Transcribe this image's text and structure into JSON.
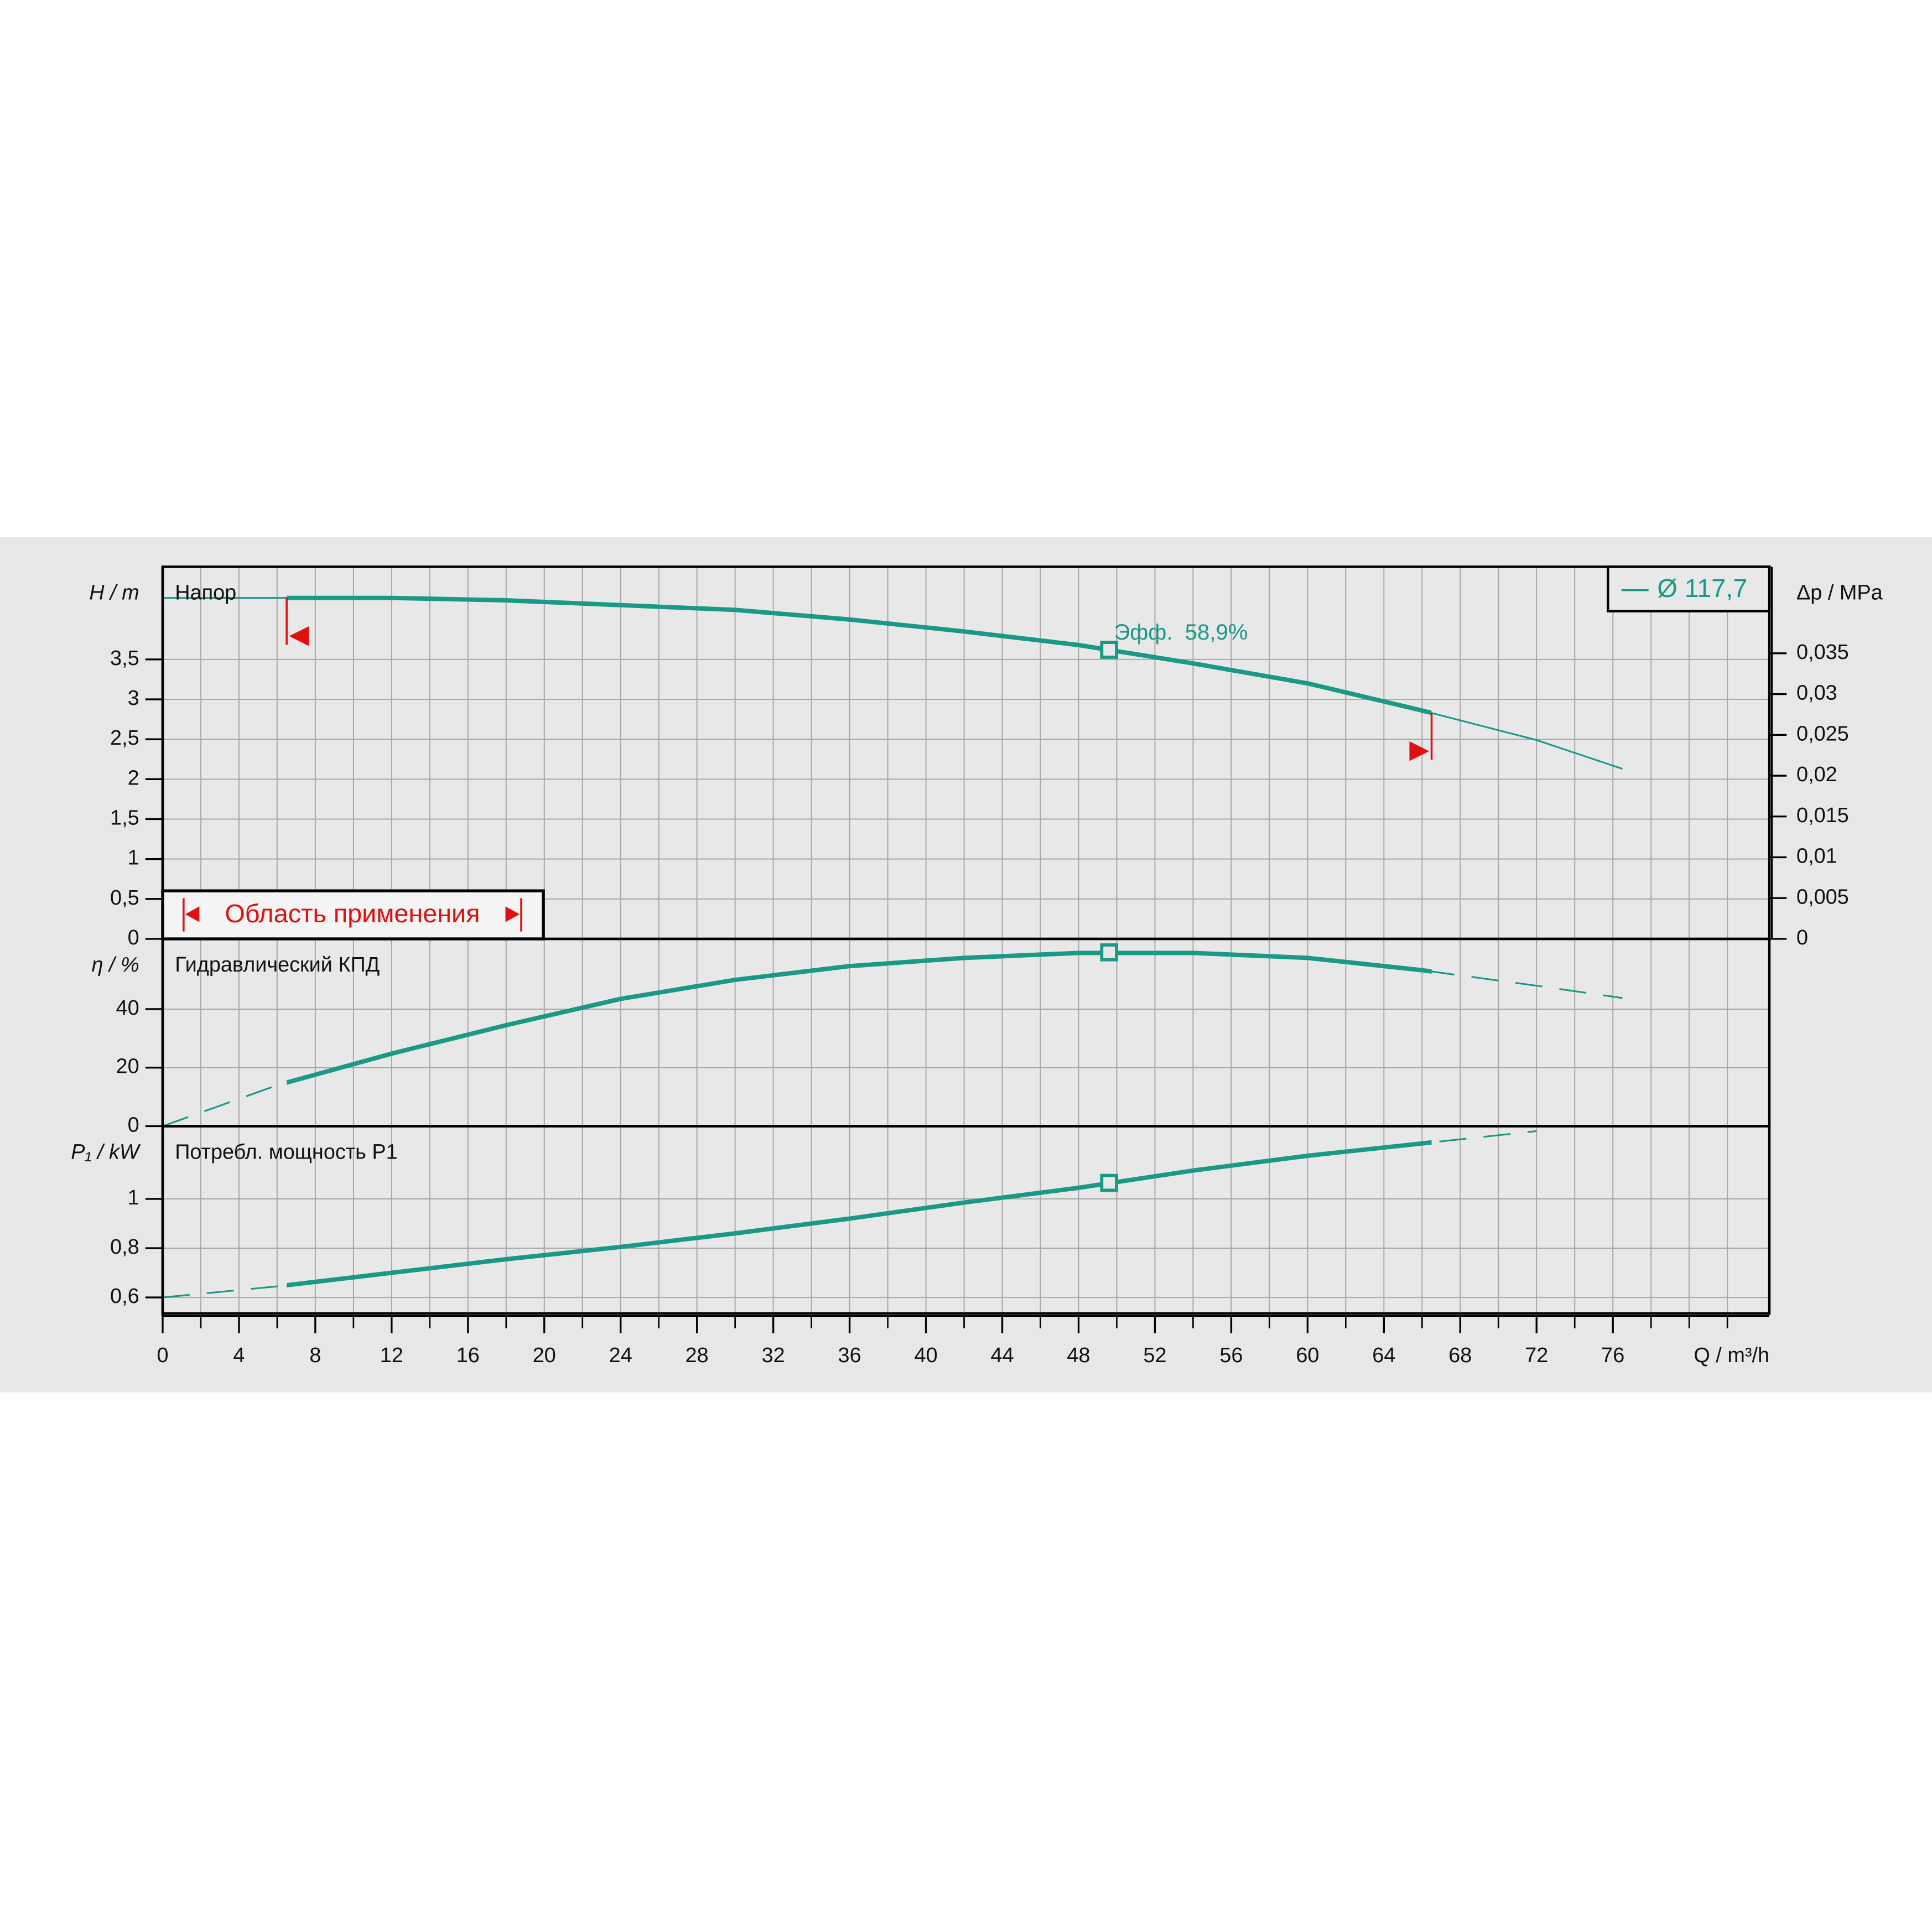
{
  "chart_data": [
    {
      "type": "line",
      "title": "Напор",
      "ylabel": "H / m",
      "y2label": "Δp / MPa",
      "xlim": [
        0,
        84.2
      ],
      "ylim": [
        0,
        4.66
      ],
      "yticks": [
        0,
        {
          "value": 0.5,
          "label": "0,5"
        },
        1,
        {
          "value": 1.5,
          "label": "1,5"
        },
        2,
        {
          "value": 2.5,
          "label": "2,5"
        },
        3,
        {
          "value": 3.5,
          "label": "3,5"
        }
      ],
      "y2lim": [
        0,
        0.0456
      ],
      "y2ticks": [
        0,
        {
          "value": 0.005,
          "label": "0,005"
        },
        {
          "value": 0.01,
          "label": "0,01"
        },
        {
          "value": 0.015,
          "label": "0,015"
        },
        {
          "value": 0.02,
          "label": "0,02"
        },
        {
          "value": 0.025,
          "label": "0,025"
        },
        {
          "value": 0.03,
          "label": "0,03"
        },
        {
          "value": 0.035,
          "label": "0,035"
        }
      ],
      "x": [
        0,
        6,
        12,
        18,
        24,
        30,
        36,
        42,
        48,
        54,
        60,
        66,
        72,
        76.5
      ],
      "series": [
        {
          "name": "Ø 117,7",
          "color": "#1a9985",
          "values": [
            4.27,
            4.27,
            4.27,
            4.24,
            4.18,
            4.12,
            4.0,
            3.85,
            3.68,
            3.45,
            3.2,
            2.86,
            2.49,
            2.13
          ]
        }
      ],
      "extension": "solid",
      "duty_point": {
        "x": 49.6,
        "y": 3.62
      },
      "annotation": "Эфф.  58,9%",
      "application_range": [
        6.5,
        66.5
      ],
      "application_range_label": "Область применения",
      "legend": "upper right"
    },
    {
      "type": "line",
      "title": "Гидравлический КПД",
      "ylabel": "η / %",
      "xlim": [
        0,
        84.2
      ],
      "ylim": [
        0,
        64
      ],
      "yticks": [
        0,
        20,
        40
      ],
      "x": [
        0,
        6,
        12,
        18,
        24,
        30,
        36,
        42,
        48,
        54,
        60,
        66,
        72,
        76.5
      ],
      "series": [
        {
          "color": "#1a9985",
          "values": [
            0,
            14,
            24.8,
            34.5,
            43.5,
            50,
            54.7,
            57.5,
            59.2,
            59.2,
            57.5,
            53.3,
            48,
            43.8
          ]
        }
      ],
      "extension": "dashed",
      "duty_point": {
        "x": 49.6,
        "y": 59.4
      }
    },
    {
      "type": "line",
      "title": "Потребл. мощность P1",
      "ylabel": "P₁ / kW",
      "xlabel": "Q / m³/h",
      "xlim": [
        0,
        84.2
      ],
      "xticks": [
        0,
        4,
        8,
        12,
        16,
        20,
        24,
        28,
        32,
        36,
        40,
        44,
        48,
        52,
        56,
        60,
        64,
        68,
        72,
        76
      ],
      "xgrid": [
        2,
        4,
        6,
        8,
        10,
        12,
        14,
        16,
        18,
        20,
        22,
        24,
        26,
        28,
        30,
        32,
        34,
        36,
        38,
        40,
        42,
        44,
        46,
        48,
        50,
        52,
        54,
        56,
        58,
        60,
        62,
        64,
        66,
        68,
        70,
        72,
        74,
        76,
        78,
        80,
        82
      ],
      "ylim": [
        0.535,
        1.295
      ],
      "yticks": [
        {
          "value": 0.6,
          "label": "0,6"
        },
        {
          "value": 0.8,
          "label": "0,8"
        },
        1
      ],
      "x": [
        0,
        6,
        12,
        18,
        24,
        30,
        36,
        42,
        48,
        54,
        60,
        66,
        72
      ],
      "series": [
        {
          "color": "#1a9985",
          "values": [
            0.6,
            0.645,
            0.7,
            0.755,
            0.805,
            0.86,
            0.92,
            0.985,
            1.045,
            1.115,
            1.175,
            1.225,
            1.275
          ]
        }
      ],
      "extension": "dashed",
      "duty_point": {
        "x": 49.6,
        "y": 1.065
      }
    }
  ]
}
